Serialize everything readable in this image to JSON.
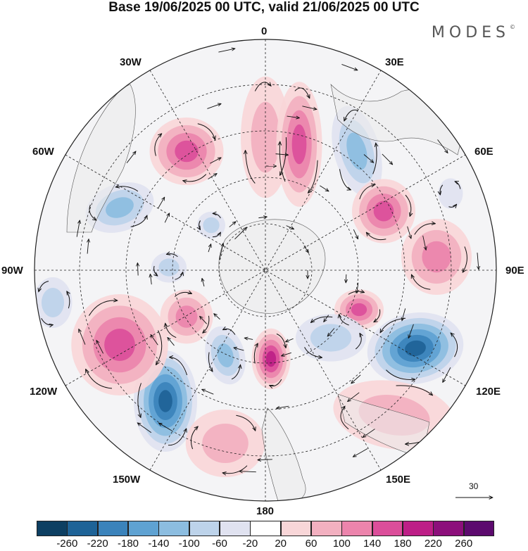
{
  "title": "Base 19/06/2025 00 UTC, valid 21/06/2025 00 UTC",
  "brand": "MODES",
  "brand_mark": "©",
  "longitude_labels": {
    "top": "0",
    "upper_left": "30W",
    "upper_right": "30E",
    "left_upper": "60W",
    "right_upper": "60E",
    "left": "90W",
    "right": "90E",
    "left_lower": "120W",
    "right_lower": "120E",
    "lower_left": "150W",
    "lower_right": "150E",
    "bottom": "180"
  },
  "vector_scale": "30",
  "colorbar": {
    "colors": [
      "#0d3f62",
      "#1e6397",
      "#3b83bb",
      "#5fa2d2",
      "#8cbde0",
      "#bdd3ea",
      "#e0e2f0",
      "#ffffff",
      "#f8d6d8",
      "#f2b0c0",
      "#ec84ac",
      "#db4e9a",
      "#bd1f87",
      "#8c0f7b",
      "#5c0a6e"
    ],
    "ticks": [
      "-260",
      "-220",
      "-180",
      "-140",
      "-100",
      "-60",
      "-20",
      "20",
      "60",
      "100",
      "140",
      "180",
      "220",
      "260"
    ]
  },
  "colors": {
    "land": "#ebebeb",
    "coast": "#555555",
    "grid": "#222222"
  }
}
